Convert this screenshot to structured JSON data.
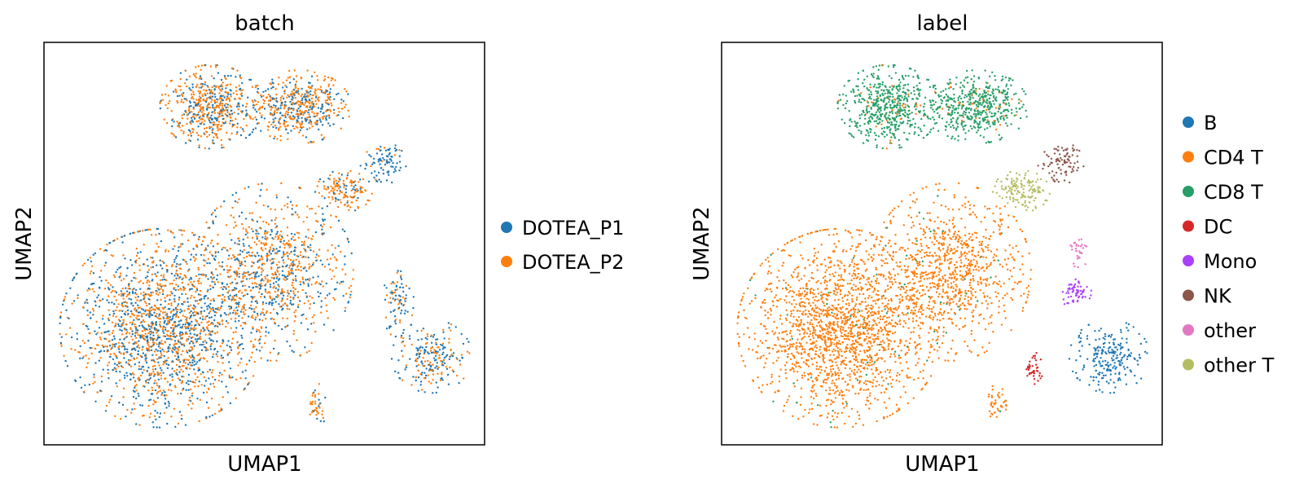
{
  "chart_data": [
    {
      "type": "scatter",
      "title": "batch",
      "xlabel": "UMAP1",
      "ylabel": "UMAP2",
      "ticks": false,
      "grid": false,
      "legend_placement": "right",
      "legend": [
        {
          "label": "DOTEA_P1",
          "color": "#1f77b4"
        },
        {
          "label": "DOTEA_P2",
          "color": "#ff7f0e"
        }
      ],
      "regions": [
        {
          "name": "lower-left",
          "cx": 0.27,
          "cy": 0.29,
          "rx": 0.18,
          "ry": 0.19,
          "n": 1800,
          "mix": [
            0.45,
            0.55
          ]
        },
        {
          "name": "center",
          "cx": 0.52,
          "cy": 0.43,
          "rx": 0.14,
          "ry": 0.17,
          "n": 900,
          "mix": [
            0.4,
            0.6
          ]
        },
        {
          "name": "upper-left",
          "cx": 0.38,
          "cy": 0.84,
          "rx": 0.09,
          "ry": 0.08,
          "n": 550,
          "mix": [
            0.4,
            0.6
          ]
        },
        {
          "name": "upper-right",
          "cx": 0.58,
          "cy": 0.84,
          "rx": 0.09,
          "ry": 0.07,
          "n": 500,
          "mix": [
            0.35,
            0.65
          ]
        },
        {
          "name": "mid-right",
          "cx": 0.68,
          "cy": 0.63,
          "rx": 0.05,
          "ry": 0.04,
          "n": 140,
          "mix": [
            0.25,
            0.75
          ]
        },
        {
          "name": "far-right",
          "cx": 0.77,
          "cy": 0.7,
          "rx": 0.04,
          "ry": 0.04,
          "n": 90,
          "mix": [
            0.85,
            0.15
          ]
        },
        {
          "name": "lower-right",
          "cx": 0.88,
          "cy": 0.22,
          "rx": 0.07,
          "ry": 0.07,
          "n": 230,
          "mix": [
            0.65,
            0.35
          ]
        },
        {
          "name": "right-strand",
          "cx": 0.8,
          "cy": 0.36,
          "rx": 0.03,
          "ry": 0.07,
          "n": 80,
          "mix": [
            0.6,
            0.4
          ]
        },
        {
          "name": "bottom-tail",
          "cx": 0.62,
          "cy": 0.1,
          "rx": 0.02,
          "ry": 0.04,
          "n": 40,
          "mix": [
            0.3,
            0.7
          ]
        }
      ]
    },
    {
      "type": "scatter",
      "title": "label",
      "xlabel": "UMAP1",
      "ylabel": "UMAP2",
      "ticks": false,
      "grid": false,
      "legend_placement": "right",
      "legend": [
        {
          "label": "B",
          "color": "#1f77b4"
        },
        {
          "label": "CD4 T",
          "color": "#ff7f0e"
        },
        {
          "label": "CD8 T",
          "color": "#279e68"
        },
        {
          "label": "DC",
          "color": "#d62728"
        },
        {
          "label": "Mono",
          "color": "#aa40fc"
        },
        {
          "label": "NK",
          "color": "#8c564b"
        },
        {
          "label": "other",
          "color": "#e377c2"
        },
        {
          "label": "other T",
          "color": "#b5bd61"
        }
      ],
      "regions": [
        {
          "name": "CD4 T main",
          "cx": 0.27,
          "cy": 0.29,
          "rx": 0.18,
          "ry": 0.19,
          "n": 1800,
          "label": "CD4 T"
        },
        {
          "name": "CD4 T center",
          "cx": 0.52,
          "cy": 0.43,
          "rx": 0.14,
          "ry": 0.17,
          "n": 900,
          "label": "CD4 T"
        },
        {
          "name": "CD8 T upper-left",
          "cx": 0.38,
          "cy": 0.84,
          "rx": 0.09,
          "ry": 0.08,
          "n": 550,
          "label": "CD8 T"
        },
        {
          "name": "CD8 T upper-right",
          "cx": 0.58,
          "cy": 0.84,
          "rx": 0.09,
          "ry": 0.07,
          "n": 500,
          "label": "CD8 T"
        },
        {
          "name": "other T",
          "cx": 0.68,
          "cy": 0.63,
          "rx": 0.05,
          "ry": 0.04,
          "n": 140,
          "label": "other T"
        },
        {
          "name": "NK",
          "cx": 0.77,
          "cy": 0.7,
          "rx": 0.04,
          "ry": 0.04,
          "n": 90,
          "label": "NK"
        },
        {
          "name": "B",
          "cx": 0.88,
          "cy": 0.22,
          "rx": 0.07,
          "ry": 0.07,
          "n": 230,
          "label": "B"
        },
        {
          "name": "Mono",
          "cx": 0.8,
          "cy": 0.38,
          "rx": 0.03,
          "ry": 0.03,
          "n": 60,
          "label": "Mono"
        },
        {
          "name": "other",
          "cx": 0.81,
          "cy": 0.48,
          "rx": 0.02,
          "ry": 0.03,
          "n": 30,
          "label": "other"
        },
        {
          "name": "DC",
          "cx": 0.71,
          "cy": 0.19,
          "rx": 0.02,
          "ry": 0.03,
          "n": 40,
          "label": "DC"
        },
        {
          "name": "CD4 T tail",
          "cx": 0.62,
          "cy": 0.1,
          "rx": 0.02,
          "ry": 0.04,
          "n": 40,
          "label": "CD4 T"
        }
      ]
    }
  ]
}
